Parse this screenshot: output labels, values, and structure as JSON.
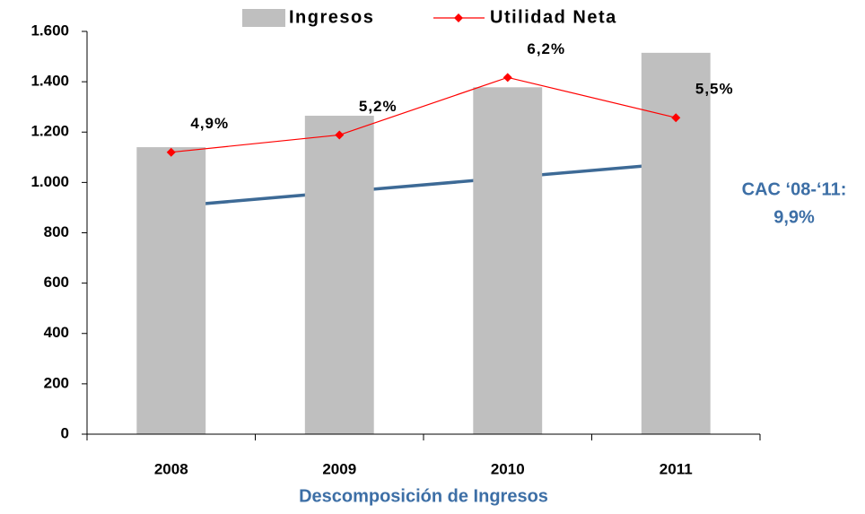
{
  "chart_data": {
    "type": "bar",
    "categories": [
      "2008",
      "2009",
      "2010",
      "2011"
    ],
    "series": [
      {
        "name": "Ingresos",
        "type": "bar",
        "color": "#bfbfbf",
        "values": [
          1140,
          1265,
          1378,
          1515
        ]
      },
      {
        "name": "Utilidad Neta",
        "type": "line",
        "color": "#ff0000",
        "axis": "y2",
        "values": [
          4.9,
          5.2,
          6.2,
          5.5
        ],
        "value_labels": [
          "4,9%",
          "5,2%",
          "6,2%",
          "5,5%"
        ]
      }
    ],
    "ylim": [
      0,
      1600
    ],
    "yticks": [
      0,
      200,
      400,
      600,
      800,
      {
        "value": 1000,
        "label": "1.000"
      },
      {
        "value": 1200,
        "label": "1.200"
      },
      {
        "value": 1400,
        "label": "1.400"
      },
      {
        "value": 1600,
        "label": "1.600"
      }
    ],
    "y2lim": [
      0,
      7
    ],
    "xlabel": "Descomposición de Ingresos",
    "annotations": [
      "CAC ‘08-‘11:",
      "9,9%"
    ],
    "legend": "top",
    "grid": false
  }
}
